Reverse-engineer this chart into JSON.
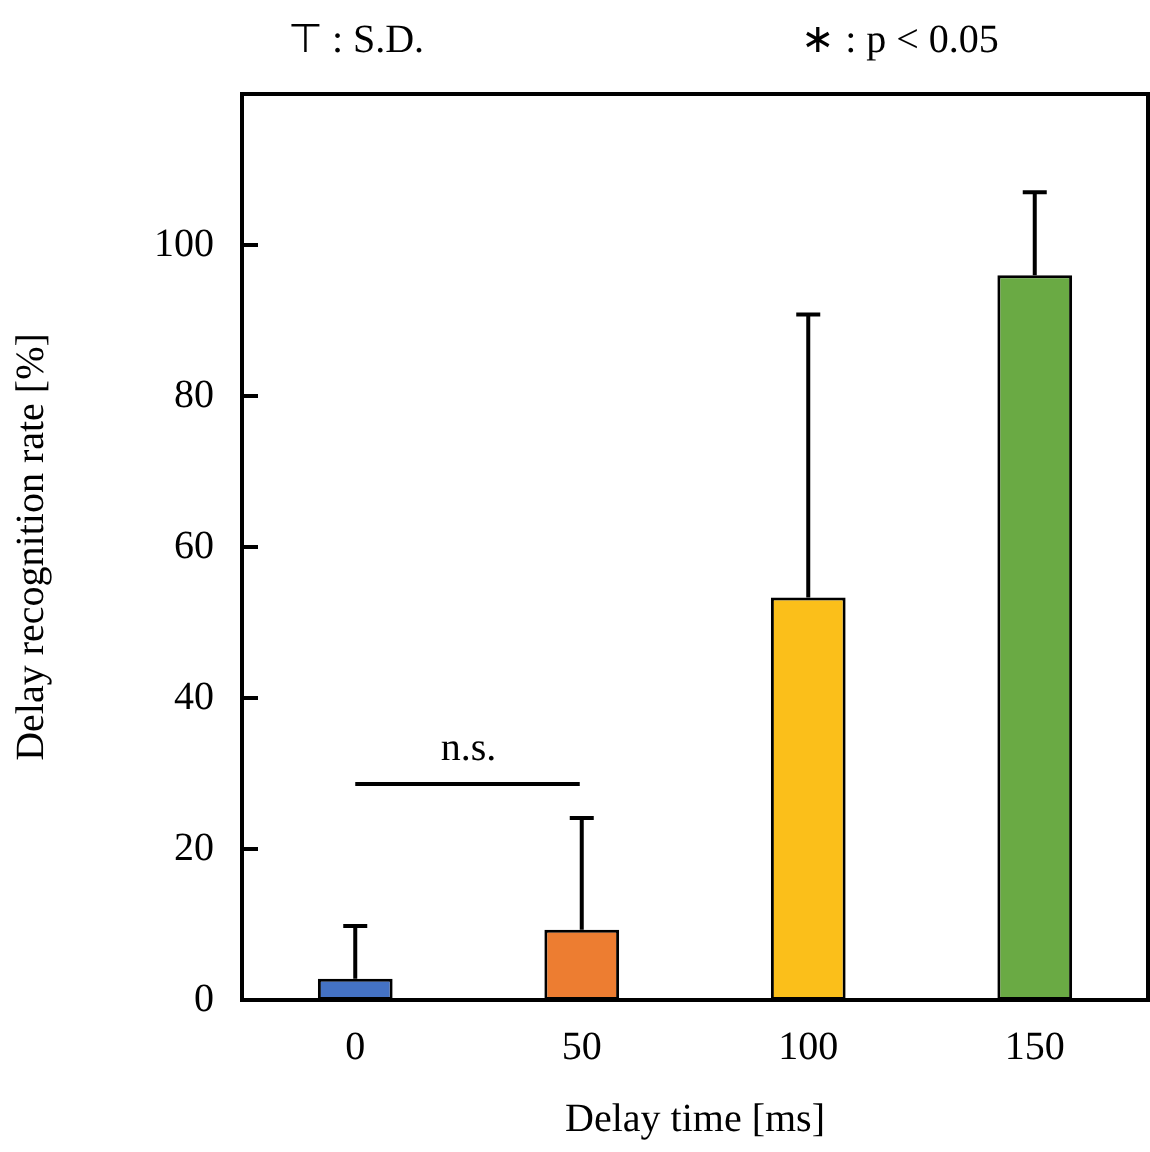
{
  "chart_data": {
    "type": "bar",
    "xlabel": "Delay time [ms]",
    "ylabel": "Delay recognition rate [%]",
    "categories": [
      "0",
      "50",
      "100",
      "150"
    ],
    "values": [
      2.8,
      9.3,
      53.3,
      96.0
    ],
    "colors": [
      "#4472c4",
      "#ed7d31",
      "#fbbf1a",
      "#6aaa44"
    ],
    "errors": [
      [
        2.8,
        9.8
      ],
      [
        9.3,
        24.1
      ],
      [
        53.3,
        90.8
      ],
      [
        96.0,
        107.0
      ]
    ],
    "ylim": [
      0,
      120
    ],
    "yticks": [
      0,
      20,
      40,
      60,
      80,
      100
    ],
    "grid": false,
    "legend": false,
    "annotations": [
      "⊤ : S.D.",
      "∗ : p < 0.05",
      "n.s."
    ]
  }
}
